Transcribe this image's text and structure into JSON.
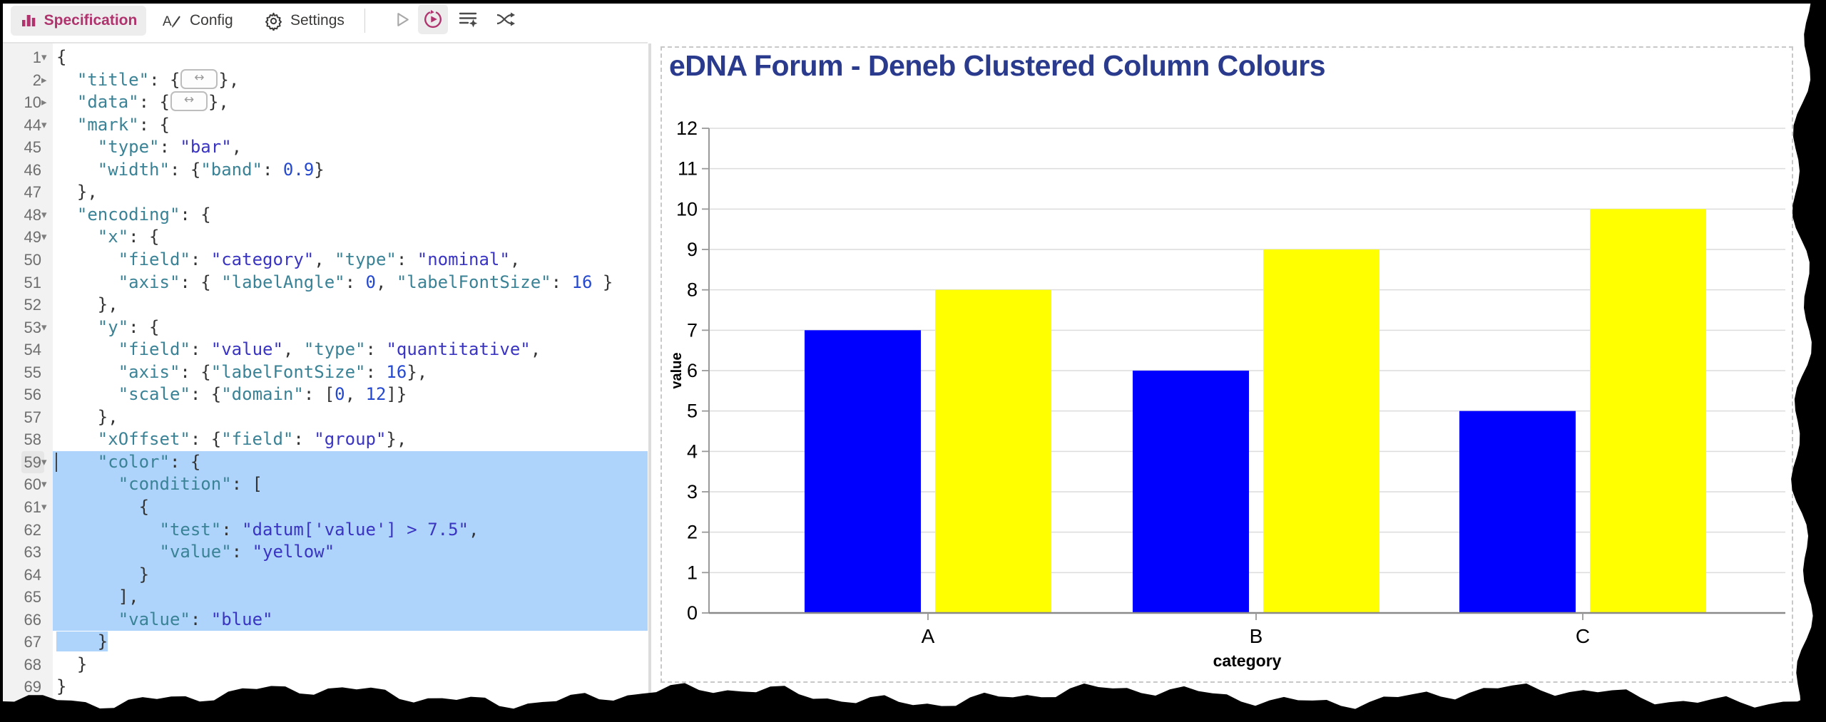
{
  "toolbar": {
    "tabs": [
      {
        "label": "Specification",
        "active": true
      },
      {
        "label": "Config",
        "active": false
      },
      {
        "label": "Settings",
        "active": false
      }
    ],
    "actions": [
      {
        "name": "run",
        "enabled": false
      },
      {
        "name": "auto-apply",
        "enabled": true,
        "toggled": true
      },
      {
        "name": "format-spec",
        "enabled": true
      },
      {
        "name": "map-fields",
        "enabled": true
      }
    ],
    "accent_color": "#b0336e"
  },
  "editor": {
    "selection_color": "#aed4fb",
    "lines": [
      {
        "n": 1,
        "fold": "open",
        "t": [
          [
            "p",
            "{"
          ]
        ]
      },
      {
        "n": 2,
        "fold": "closed",
        "t": [
          [
            "p",
            "  "
          ],
          [
            "k",
            "\"title\""
          ],
          [
            "p",
            ": {"
          ],
          [
            "badge",
            ""
          ],
          [
            "p",
            "},"
          ]
        ]
      },
      {
        "n": 10,
        "fold": "closed",
        "t": [
          [
            "p",
            "  "
          ],
          [
            "k",
            "\"data\""
          ],
          [
            "p",
            ": {"
          ],
          [
            "badge",
            ""
          ],
          [
            "p",
            "},"
          ]
        ]
      },
      {
        "n": 44,
        "fold": "open",
        "t": [
          [
            "p",
            "  "
          ],
          [
            "k",
            "\"mark\""
          ],
          [
            "p",
            ": {"
          ]
        ]
      },
      {
        "n": 45,
        "t": [
          [
            "p",
            "    "
          ],
          [
            "k",
            "\"type\""
          ],
          [
            "p",
            ": "
          ],
          [
            "s",
            "\"bar\""
          ],
          [
            "p",
            ","
          ]
        ]
      },
      {
        "n": 46,
        "t": [
          [
            "p",
            "    "
          ],
          [
            "k",
            "\"width\""
          ],
          [
            "p",
            ": {"
          ],
          [
            "k",
            "\"band\""
          ],
          [
            "p",
            ": "
          ],
          [
            "n",
            "0.9"
          ],
          [
            "p",
            "}"
          ]
        ]
      },
      {
        "n": 47,
        "t": [
          [
            "p",
            "  },"
          ]
        ]
      },
      {
        "n": 48,
        "fold": "open",
        "t": [
          [
            "p",
            "  "
          ],
          [
            "k",
            "\"encoding\""
          ],
          [
            "p",
            ": {"
          ]
        ]
      },
      {
        "n": 49,
        "fold": "open",
        "t": [
          [
            "p",
            "    "
          ],
          [
            "k",
            "\"x\""
          ],
          [
            "p",
            ": {"
          ]
        ]
      },
      {
        "n": 50,
        "t": [
          [
            "p",
            "      "
          ],
          [
            "k",
            "\"field\""
          ],
          [
            "p",
            ": "
          ],
          [
            "s",
            "\"category\""
          ],
          [
            "p",
            ", "
          ],
          [
            "k",
            "\"type\""
          ],
          [
            "p",
            ": "
          ],
          [
            "s",
            "\"nominal\""
          ],
          [
            "p",
            ","
          ]
        ]
      },
      {
        "n": 51,
        "t": [
          [
            "p",
            "      "
          ],
          [
            "k",
            "\"axis\""
          ],
          [
            "p",
            ": { "
          ],
          [
            "k",
            "\"labelAngle\""
          ],
          [
            "p",
            ": "
          ],
          [
            "n",
            "0"
          ],
          [
            "p",
            ", "
          ],
          [
            "k",
            "\"labelFontSize\""
          ],
          [
            "p",
            ": "
          ],
          [
            "n",
            "16"
          ],
          [
            "p",
            " }"
          ]
        ]
      },
      {
        "n": 52,
        "t": [
          [
            "p",
            "    },"
          ]
        ]
      },
      {
        "n": 53,
        "fold": "open",
        "t": [
          [
            "p",
            "    "
          ],
          [
            "k",
            "\"y\""
          ],
          [
            "p",
            ": {"
          ]
        ]
      },
      {
        "n": 54,
        "t": [
          [
            "p",
            "      "
          ],
          [
            "k",
            "\"field\""
          ],
          [
            "p",
            ": "
          ],
          [
            "s",
            "\"value\""
          ],
          [
            "p",
            ", "
          ],
          [
            "k",
            "\"type\""
          ],
          [
            "p",
            ": "
          ],
          [
            "s",
            "\"quantitative\""
          ],
          [
            "p",
            ","
          ]
        ]
      },
      {
        "n": 55,
        "t": [
          [
            "p",
            "      "
          ],
          [
            "k",
            "\"axis\""
          ],
          [
            "p",
            ": {"
          ],
          [
            "k",
            "\"labelFontSize\""
          ],
          [
            "p",
            ": "
          ],
          [
            "n",
            "16"
          ],
          [
            "p",
            "},"
          ]
        ]
      },
      {
        "n": 56,
        "t": [
          [
            "p",
            "      "
          ],
          [
            "k",
            "\"scale\""
          ],
          [
            "p",
            ": {"
          ],
          [
            "k",
            "\"domain\""
          ],
          [
            "p",
            ": ["
          ],
          [
            "n",
            "0"
          ],
          [
            "p",
            ", "
          ],
          [
            "n",
            "12"
          ],
          [
            "p",
            "]}"
          ]
        ]
      },
      {
        "n": 57,
        "t": [
          [
            "p",
            "    },"
          ]
        ]
      },
      {
        "n": 58,
        "t": [
          [
            "p",
            "    "
          ],
          [
            "k",
            "\"xOffset\""
          ],
          [
            "p",
            ": {"
          ],
          [
            "k",
            "\"field\""
          ],
          [
            "p",
            ": "
          ],
          [
            "s",
            "\"group\""
          ],
          [
            "p",
            "},"
          ]
        ]
      },
      {
        "n": 59,
        "fold": "open",
        "sel": "full",
        "cursor": true,
        "t": [
          [
            "p",
            "    "
          ],
          [
            "k",
            "\"color\""
          ],
          [
            "p",
            ": {"
          ]
        ]
      },
      {
        "n": 60,
        "fold": "open",
        "sel": "full",
        "t": [
          [
            "p",
            "      "
          ],
          [
            "k",
            "\"condition\""
          ],
          [
            "p",
            ": ["
          ]
        ]
      },
      {
        "n": 61,
        "fold": "open",
        "sel": "full",
        "t": [
          [
            "p",
            "        {"
          ]
        ]
      },
      {
        "n": 62,
        "sel": "full",
        "t": [
          [
            "p",
            "          "
          ],
          [
            "k",
            "\"test\""
          ],
          [
            "p",
            ": "
          ],
          [
            "s",
            "\"datum['value'] > 7.5\""
          ],
          [
            "p",
            ","
          ]
        ]
      },
      {
        "n": 63,
        "sel": "full",
        "t": [
          [
            "p",
            "          "
          ],
          [
            "k",
            "\"value\""
          ],
          [
            "p",
            ": "
          ],
          [
            "s",
            "\"yellow\""
          ]
        ]
      },
      {
        "n": 64,
        "sel": "full",
        "t": [
          [
            "p",
            "        }"
          ]
        ]
      },
      {
        "n": 65,
        "sel": "full",
        "t": [
          [
            "p",
            "      ],"
          ]
        ]
      },
      {
        "n": 66,
        "sel": "full",
        "t": [
          [
            "p",
            "      "
          ],
          [
            "k",
            "\"value\""
          ],
          [
            "p",
            ": "
          ],
          [
            "s",
            "\"blue\""
          ]
        ]
      },
      {
        "n": 67,
        "sel": "partial",
        "t": [
          [
            "p",
            "    }"
          ]
        ]
      },
      {
        "n": 68,
        "t": [
          [
            "p",
            "  }"
          ]
        ]
      },
      {
        "n": 69,
        "t": [
          [
            "p",
            "}"
          ]
        ]
      }
    ]
  },
  "chart_data": {
    "type": "bar",
    "title": "eDNA Forum - Deneb Clustered Column Colours",
    "title_color": "#2a3a8c",
    "categories": [
      "A",
      "B",
      "C"
    ],
    "series": [
      {
        "name": "blue",
        "color": "#0000ff",
        "values": [
          7,
          6,
          5
        ]
      },
      {
        "name": "yellow",
        "color": "#ffff00",
        "values": [
          8,
          9,
          10
        ]
      }
    ],
    "xlabel": "category",
    "ylabel": "value",
    "ylim": [
      0,
      12
    ],
    "yticks": [
      0,
      1,
      2,
      3,
      4,
      5,
      6,
      7,
      8,
      9,
      10,
      11,
      12
    ],
    "grid": true,
    "legend": "none"
  }
}
